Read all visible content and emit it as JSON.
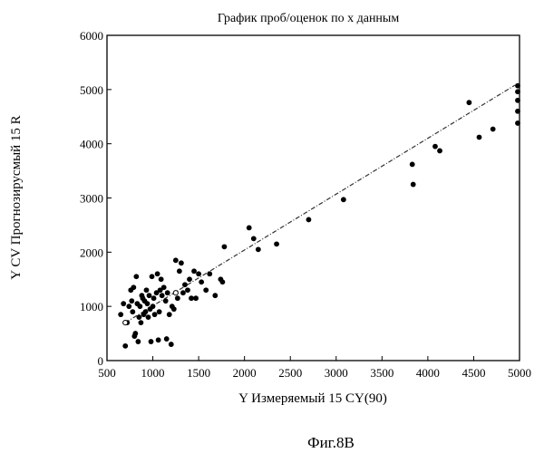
{
  "chart_data": {
    "type": "scatter",
    "title": "График проб/оценок по х данным",
    "xlabel": "Y Измеряемый 15 CY(90)",
    "ylabel": "Y CV Прогнозирусмый 15 R",
    "caption": "Фиг.8В",
    "xlim": [
      500,
      5000
    ],
    "ylim": [
      0,
      6000
    ],
    "x_ticks": [
      "500",
      "1000",
      "1500",
      "2000",
      "2500",
      "3000",
      "3500",
      "4000",
      "4500",
      "5000"
    ],
    "y_ticks": [
      "0",
      "1000",
      "2000",
      "3000",
      "4000",
      "5000",
      "6000"
    ],
    "grid": false,
    "fit_line": {
      "x": [
        700,
        4950
      ],
      "y": [
        700,
        5080
      ]
    },
    "points": [
      {
        "x": 650,
        "y": 850
      },
      {
        "x": 680,
        "y": 1050
      },
      {
        "x": 700,
        "y": 270
      },
      {
        "x": 720,
        "y": 700
      },
      {
        "x": 740,
        "y": 1000
      },
      {
        "x": 760,
        "y": 1300
      },
      {
        "x": 770,
        "y": 1100
      },
      {
        "x": 780,
        "y": 900
      },
      {
        "x": 790,
        "y": 1350
      },
      {
        "x": 800,
        "y": 450
      },
      {
        "x": 810,
        "y": 500
      },
      {
        "x": 820,
        "y": 1550
      },
      {
        "x": 830,
        "y": 1050
      },
      {
        "x": 840,
        "y": 350
      },
      {
        "x": 850,
        "y": 800
      },
      {
        "x": 860,
        "y": 1000
      },
      {
        "x": 870,
        "y": 700
      },
      {
        "x": 880,
        "y": 1200
      },
      {
        "x": 890,
        "y": 1150
      },
      {
        "x": 900,
        "y": 850
      },
      {
        "x": 910,
        "y": 1100
      },
      {
        "x": 920,
        "y": 900
      },
      {
        "x": 930,
        "y": 1300
      },
      {
        "x": 940,
        "y": 1050
      },
      {
        "x": 950,
        "y": 800
      },
      {
        "x": 960,
        "y": 1200
      },
      {
        "x": 970,
        "y": 950
      },
      {
        "x": 980,
        "y": 350
      },
      {
        "x": 990,
        "y": 1550
      },
      {
        "x": 1000,
        "y": 1000
      },
      {
        "x": 1010,
        "y": 1150
      },
      {
        "x": 1020,
        "y": 850
      },
      {
        "x": 1040,
        "y": 1250
      },
      {
        "x": 1050,
        "y": 1600
      },
      {
        "x": 1060,
        "y": 380
      },
      {
        "x": 1070,
        "y": 900
      },
      {
        "x": 1080,
        "y": 1300
      },
      {
        "x": 1090,
        "y": 1500
      },
      {
        "x": 1100,
        "y": 1200
      },
      {
        "x": 1120,
        "y": 1350
      },
      {
        "x": 1140,
        "y": 1100
      },
      {
        "x": 1150,
        "y": 400
      },
      {
        "x": 1160,
        "y": 1250
      },
      {
        "x": 1180,
        "y": 850
      },
      {
        "x": 1200,
        "y": 300
      },
      {
        "x": 1210,
        "y": 1000
      },
      {
        "x": 1230,
        "y": 950
      },
      {
        "x": 1250,
        "y": 1850
      },
      {
        "x": 1270,
        "y": 1150
      },
      {
        "x": 1290,
        "y": 1650
      },
      {
        "x": 1310,
        "y": 1800
      },
      {
        "x": 1330,
        "y": 1250
      },
      {
        "x": 1350,
        "y": 1400
      },
      {
        "x": 1380,
        "y": 1300
      },
      {
        "x": 1400,
        "y": 1500
      },
      {
        "x": 1420,
        "y": 1150
      },
      {
        "x": 1450,
        "y": 1650
      },
      {
        "x": 1470,
        "y": 1150
      },
      {
        "x": 1500,
        "y": 1600
      },
      {
        "x": 1530,
        "y": 1450
      },
      {
        "x": 1580,
        "y": 1300
      },
      {
        "x": 1620,
        "y": 1600
      },
      {
        "x": 1680,
        "y": 1200
      },
      {
        "x": 1740,
        "y": 1500
      },
      {
        "x": 1760,
        "y": 1450
      },
      {
        "x": 1780,
        "y": 2100
      },
      {
        "x": 2050,
        "y": 2450
      },
      {
        "x": 2100,
        "y": 2250
      },
      {
        "x": 2150,
        "y": 2050
      },
      {
        "x": 2350,
        "y": 2150
      },
      {
        "x": 2700,
        "y": 2600
      },
      {
        "x": 3080,
        "y": 2970
      },
      {
        "x": 3830,
        "y": 3620
      },
      {
        "x": 3840,
        "y": 3250
      },
      {
        "x": 4080,
        "y": 3950
      },
      {
        "x": 4130,
        "y": 3870
      },
      {
        "x": 4450,
        "y": 4760
      },
      {
        "x": 4560,
        "y": 4120
      },
      {
        "x": 4710,
        "y": 4270
      },
      {
        "x": 4980,
        "y": 4380
      },
      {
        "x": 4980,
        "y": 4600
      },
      {
        "x": 4980,
        "y": 4800
      },
      {
        "x": 4980,
        "y": 4960
      },
      {
        "x": 4980,
        "y": 5070
      }
    ],
    "open_points": [
      {
        "x": 700,
        "y": 700
      },
      {
        "x": 1250,
        "y": 1250
      }
    ]
  }
}
